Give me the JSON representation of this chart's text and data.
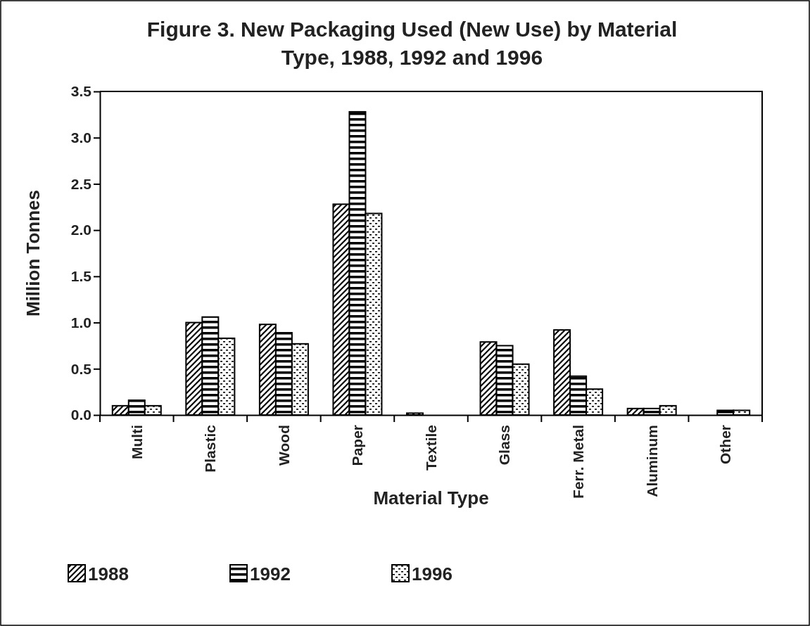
{
  "chart_data": {
    "type": "bar",
    "title": "Figure 3. New Packaging Used (New Use) by Material Type, 1988, 1992 and 1996",
    "xlabel": "Material Type",
    "ylabel": "Million Tonnes",
    "categories": [
      "Multi",
      "Plastic",
      "Wood",
      "Paper",
      "Textile",
      "Glass",
      "Ferr. Metal",
      "Aluminum",
      "Other"
    ],
    "series": [
      {
        "name": "1988",
        "color": "#000000",
        "values": [
          0.1,
          1.0,
          0.98,
          2.28,
          0.02,
          0.79,
          0.92,
          0.07,
          null
        ]
      },
      {
        "name": "1992",
        "color": "#000000",
        "values": [
          0.16,
          1.06,
          0.89,
          3.28,
          null,
          0.75,
          0.42,
          0.07,
          0.05
        ]
      },
      {
        "name": "1996",
        "color": "#000000",
        "values": [
          0.1,
          0.83,
          0.77,
          2.18,
          null,
          0.55,
          0.28,
          0.1,
          0.05
        ]
      }
    ],
    "ylim": [
      0,
      3.5
    ],
    "yticks": [
      {
        "value": 0,
        "label": "0.0"
      },
      0.5,
      {
        "value": 1,
        "label": "1.0"
      },
      1.5,
      {
        "value": 2,
        "label": "2.0"
      },
      2.5,
      {
        "value": 3,
        "label": "3.0"
      },
      3.5
    ],
    "grid": false,
    "legend": "bottom"
  }
}
